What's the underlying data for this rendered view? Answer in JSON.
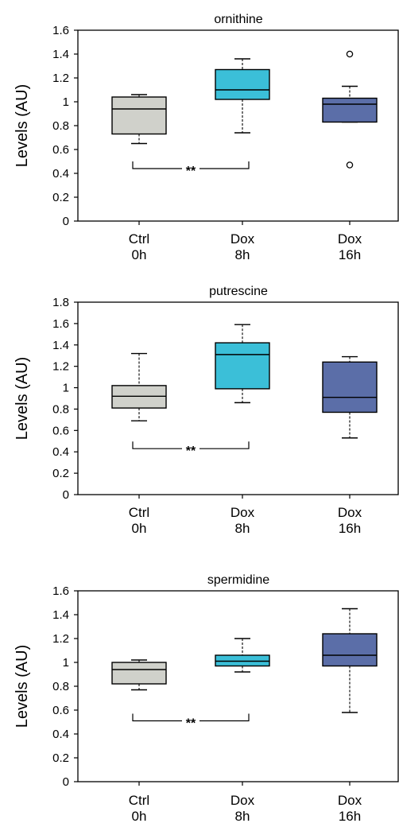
{
  "chart_data": [
    {
      "type": "box",
      "title": "ornithine",
      "ylabel": "Levels (AU)",
      "ylim": [
        0,
        1.6
      ],
      "yticks": [
        "0",
        "0.2",
        "0.4",
        "0.6",
        "0.8",
        "1",
        "1.2",
        "1.4",
        "1.6"
      ],
      "categories": [
        {
          "line1": "Ctrl",
          "line2": "0h"
        },
        {
          "line1": "Dox",
          "line2": "8h"
        },
        {
          "line1": "Dox",
          "line2": "16h"
        }
      ],
      "boxes": [
        {
          "min": 0.65,
          "q1": 0.73,
          "median": 0.94,
          "q3": 1.04,
          "max": 1.06,
          "outliers": []
        },
        {
          "min": 0.74,
          "q1": 1.02,
          "median": 1.1,
          "q3": 1.27,
          "max": 1.36,
          "outliers": []
        },
        {
          "min": 0.83,
          "q1": 0.83,
          "median": 0.98,
          "q3": 1.03,
          "max": 1.13,
          "outliers": [
            1.4,
            0.47
          ]
        }
      ],
      "significance": {
        "from": 0,
        "to": 1,
        "label": "**",
        "y": 0.44
      }
    },
    {
      "type": "box",
      "title": "putrescine",
      "ylabel": "Levels (AU)",
      "ylim": [
        0,
        1.8
      ],
      "yticks": [
        "0",
        "0.2",
        "0.4",
        "0.6",
        "0.8",
        "1",
        "1.2",
        "1.4",
        "1.6",
        "1.8"
      ],
      "categories": [
        {
          "line1": "Ctrl",
          "line2": "0h"
        },
        {
          "line1": "Dox",
          "line2": "8h"
        },
        {
          "line1": "Dox",
          "line2": "16h"
        }
      ],
      "boxes": [
        {
          "min": 0.69,
          "q1": 0.81,
          "median": 0.92,
          "q3": 1.02,
          "max": 1.32,
          "outliers": []
        },
        {
          "min": 0.86,
          "q1": 0.99,
          "median": 1.31,
          "q3": 1.42,
          "max": 1.59,
          "outliers": []
        },
        {
          "min": 0.53,
          "q1": 0.77,
          "median": 0.91,
          "q3": 1.24,
          "max": 1.29,
          "outliers": []
        }
      ],
      "significance": {
        "from": 0,
        "to": 1,
        "label": "**",
        "y": 0.43
      }
    },
    {
      "type": "box",
      "title": "spermidine",
      "ylabel": "Levels (AU)",
      "ylim": [
        0,
        1.6
      ],
      "yticks": [
        "0",
        "0.2",
        "0.4",
        "0.6",
        "0.8",
        "1",
        "1.2",
        "1.4",
        "1.6"
      ],
      "categories": [
        {
          "line1": "Ctrl",
          "line2": "0h"
        },
        {
          "line1": "Dox",
          "line2": "8h"
        },
        {
          "line1": "Dox",
          "line2": "16h"
        }
      ],
      "boxes": [
        {
          "min": 0.77,
          "q1": 0.82,
          "median": 0.94,
          "q3": 1.0,
          "max": 1.02,
          "outliers": []
        },
        {
          "min": 0.92,
          "q1": 0.97,
          "median": 1.01,
          "q3": 1.06,
          "max": 1.2,
          "outliers": []
        },
        {
          "min": 0.58,
          "q1": 0.97,
          "median": 1.06,
          "q3": 1.24,
          "max": 1.45,
          "outliers": []
        }
      ],
      "significance": {
        "from": 0,
        "to": 1,
        "label": "**",
        "y": 0.51
      }
    }
  ],
  "colors": {
    "box_fills": [
      "#d0d1cb",
      "#3bbfd8",
      "#5b6ea8"
    ],
    "stroke": "#000000"
  }
}
